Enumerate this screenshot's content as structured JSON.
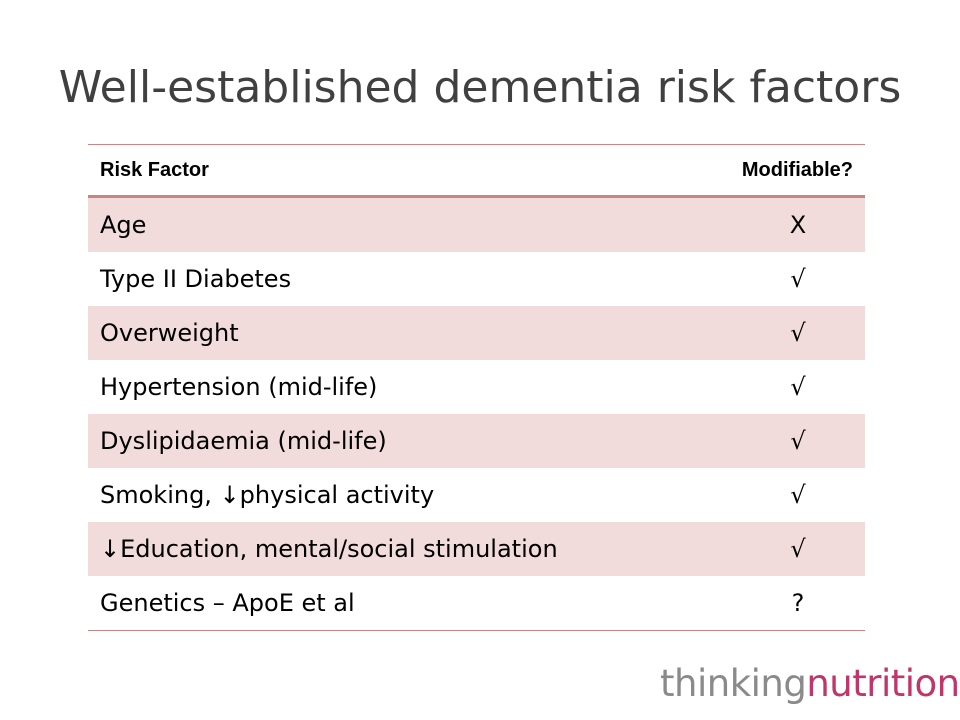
{
  "slide": {
    "title": "Well-established dementia risk factors"
  },
  "table": {
    "headers": {
      "factor": "Risk Factor",
      "modifiable": "Modifiable?"
    },
    "rows": [
      {
        "factor": "Age",
        "modifiable": "X"
      },
      {
        "factor": "Type II Diabetes",
        "modifiable": "√"
      },
      {
        "factor": "Overweight",
        "modifiable": "√"
      },
      {
        "factor": "Hypertension (mid-life)",
        "modifiable": "√"
      },
      {
        "factor": "Dyslipidaemia (mid-life)",
        "modifiable": "√"
      },
      {
        "factor": "Smoking, ↓physical activity",
        "modifiable": "√"
      },
      {
        "factor": "↓Education, mental/social stimulation",
        "modifiable": "√"
      },
      {
        "factor": "Genetics – ApoE et al",
        "modifiable": "?"
      }
    ]
  },
  "logo": {
    "part1": "thinking",
    "part2": "nutrition"
  },
  "colors": {
    "stripe": "#f2dcdb",
    "rule": "#c98585",
    "logo_gray": "#8a8a8a",
    "logo_pink": "#c0356a"
  }
}
